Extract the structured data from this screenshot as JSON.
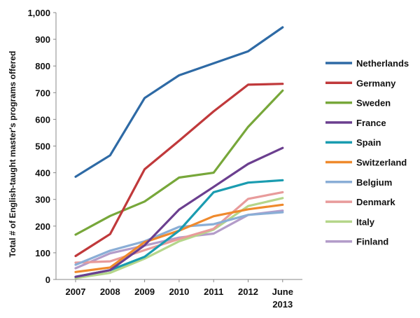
{
  "chart_data": {
    "type": "line",
    "title": "",
    "xlabel": "",
    "ylabel": "Total # of English-taught master's programs offered",
    "categories": [
      "2007",
      "2008",
      "2009",
      "2010",
      "2011",
      "2012",
      "June 2013"
    ],
    "ylim": [
      0,
      1000
    ],
    "yticks": [
      "0",
      "100",
      "200",
      "300",
      "400",
      "500",
      "600",
      "700",
      "800",
      "900",
      "1,000"
    ],
    "grid": false,
    "legend": "right",
    "series": [
      {
        "name": "Netherlands",
        "color": "#2e6aa5",
        "values": [
          385,
          465,
          680,
          765,
          810,
          855,
          945
        ]
      },
      {
        "name": "Germany",
        "color": "#c0393b",
        "values": [
          88,
          170,
          413,
          520,
          630,
          730,
          733
        ]
      },
      {
        "name": "Sweden",
        "color": "#77a73a",
        "values": [
          168,
          238,
          292,
          382,
          400,
          572,
          708
        ]
      },
      {
        "name": "France",
        "color": "#6b3f8f",
        "values": [
          10,
          35,
          128,
          262,
          347,
          433,
          493
        ]
      },
      {
        "name": "Spain",
        "color": "#1a9cb0",
        "values": [
          10,
          35,
          85,
          183,
          327,
          363,
          372
        ]
      },
      {
        "name": "Switzerland",
        "color": "#ef8a2d",
        "values": [
          28,
          45,
          140,
          183,
          237,
          263,
          280
        ]
      },
      {
        "name": "Belgium",
        "color": "#8aaed6",
        "values": [
          55,
          108,
          143,
          197,
          207,
          242,
          252
        ]
      },
      {
        "name": "Denmark",
        "color": "#e89b9b",
        "values": [
          63,
          68,
          110,
          152,
          190,
          302,
          327
        ]
      },
      {
        "name": "Italy",
        "color": "#b5d68a",
        "values": [
          5,
          25,
          78,
          143,
          187,
          275,
          305
        ]
      },
      {
        "name": "Finland",
        "color": "#b39cc9",
        "values": [
          42,
          98,
          127,
          157,
          172,
          242,
          258
        ]
      }
    ]
  }
}
